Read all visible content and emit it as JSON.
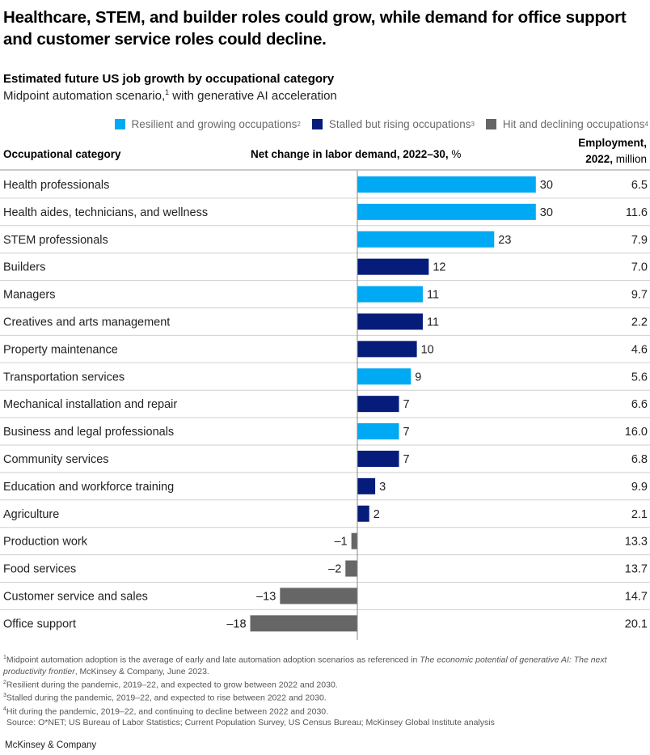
{
  "header": {
    "title": "Healthcare, STEM, and builder roles could grow, while demand for office support and customer service roles could decline.",
    "subtitle": "Estimated future US job growth by occupational category",
    "subtitle2_pre": "Midpoint automation scenario,",
    "subtitle2_sup": "1",
    "subtitle2_post": " with generative AI acceleration"
  },
  "legend": [
    {
      "label": "Resilient and growing occupations",
      "sup": "2",
      "color": "#00A9F4"
    },
    {
      "label": "Stalled but rising occupations",
      "sup": "3",
      "color": "#051C7A"
    },
    {
      "label": "Hit and declining occupations",
      "sup": "4",
      "color": "#666666"
    }
  ],
  "columns": {
    "category": "Occupational category",
    "net_bold": "Net change in labor demand, 2022–30,",
    "net_unit": " %",
    "emp_line1": "Employment,",
    "emp_line2_bold": "2022,",
    "emp_line2_unit": " million"
  },
  "chart_data": {
    "type": "bar",
    "orientation": "horizontal",
    "title": "Estimated future US job growth by occupational category",
    "xlabel": "Net change in labor demand, 2022–30, %",
    "categories": [
      "Health professionals",
      "Health aides, technicians, and wellness",
      "STEM professionals",
      "Builders",
      "Managers",
      "Creatives and arts management",
      "Property maintenance",
      "Transportation services",
      "Mechanical installation and repair",
      "Business and legal professionals",
      "Community services",
      "Education and workforce training",
      "Agriculture",
      "Production work",
      "Food services",
      "Customer service and sales",
      "Office support"
    ],
    "values": [
      30,
      30,
      23,
      12,
      11,
      11,
      10,
      9,
      7,
      7,
      7,
      3,
      2,
      -1,
      -2,
      -13,
      -18
    ],
    "value_labels": [
      "30",
      "30",
      "23",
      "12",
      "11",
      "11",
      "10",
      "9",
      "7",
      "7",
      "7",
      "3",
      "2",
      "–1",
      "–2",
      "–13",
      "–18"
    ],
    "groups": [
      "resilient",
      "resilient",
      "resilient",
      "stalled",
      "resilient",
      "stalled",
      "stalled",
      "resilient",
      "stalled",
      "resilient",
      "stalled",
      "stalled",
      "stalled",
      "hit",
      "hit",
      "hit",
      "hit"
    ],
    "group_colors": {
      "resilient": "#00A9F4",
      "stalled": "#051C7A",
      "hit": "#666666"
    },
    "employment_2022_million": [
      "6.5",
      "11.6",
      "7.9",
      "7.0",
      "9.7",
      "2.2",
      "4.6",
      "5.6",
      "6.6",
      "16.0",
      "6.8",
      "9.9",
      "2.1",
      "13.3",
      "13.7",
      "14.7",
      "20.1"
    ],
    "xlim": [
      -18,
      30
    ],
    "grid": false,
    "legend_position": "top-right"
  },
  "footnotes": {
    "f1_sup": "1",
    "f1_text": "Midpoint automation adoption is the average of early and late automation adoption scenarios as referenced in ",
    "f1_italic": "The economic potential of generative AI: The next productivity frontier",
    "f1_tail": ", McKinsey & Company, June 2023.",
    "f2_sup": "2",
    "f2_text": "Resilient during the pandemic, 2019–22, and expected to grow between 2022 and 2030.",
    "f3_sup": "3",
    "f3_text": "Stalled during the pandemic, 2019–22, and expected to rise between 2022 and 2030.",
    "f4_sup": "4",
    "f4_text": "Hit during the pandemic, 2019–22, and continuing to decline between 2022 and 2030.",
    "source": "Source: O*NET; US Bureau of Labor Statistics; Current Population Survey, US Census Bureau; McKinsey Global Institute analysis"
  },
  "brand": "McKinsey & Company"
}
